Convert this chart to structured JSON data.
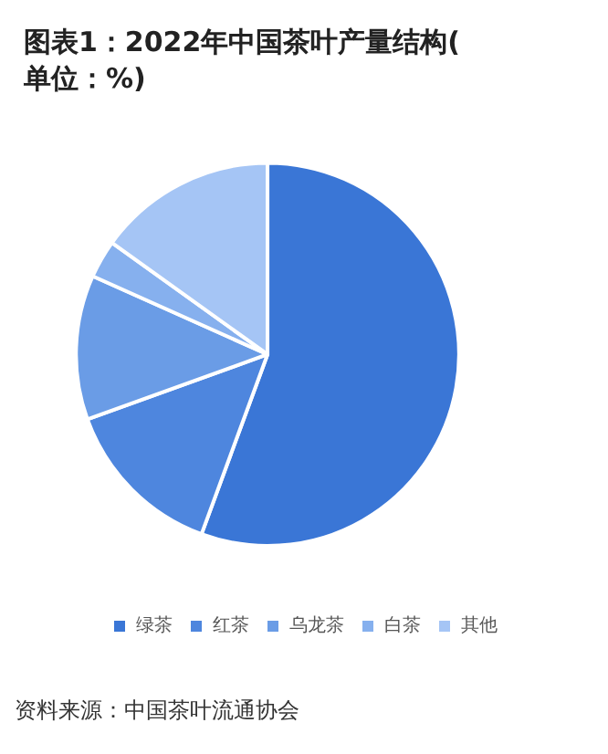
{
  "chart_data": {
    "type": "pie",
    "title": "图表1：2022年中国茶叶产量结构(单位：%)",
    "categories": [
      "绿茶",
      "红茶",
      "乌龙茶",
      "白茶",
      "其他"
    ],
    "values": [
      55.6,
      13.9,
      12.2,
      3.2,
      15.1
    ],
    "colors": [
      "#3a76d6",
      "#4e86de",
      "#6a9ce6",
      "#86b0ee",
      "#a5c5f5"
    ],
    "legend": "bottom",
    "annotations": [
      "资料来源：中国茶叶流通协会"
    ]
  }
}
